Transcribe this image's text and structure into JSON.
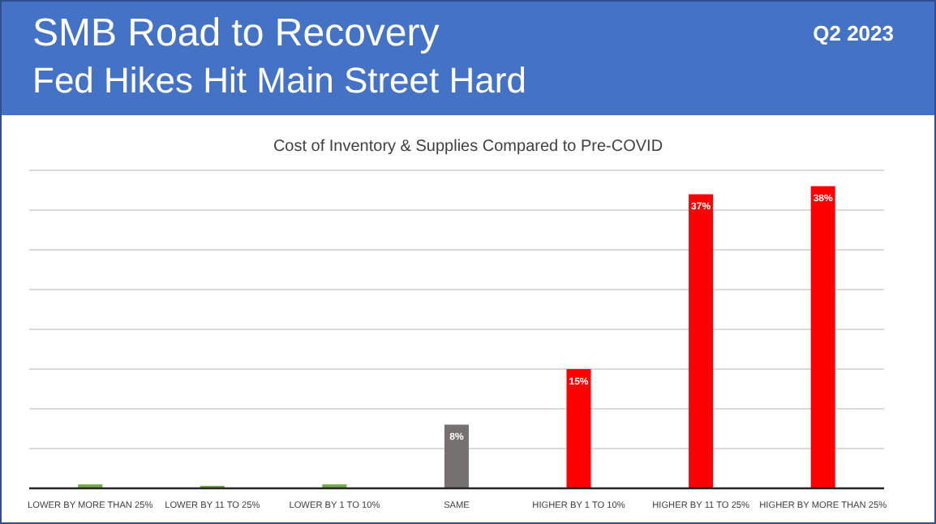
{
  "chart_data": {
    "type": "bar",
    "title": "SMB Road to Recovery",
    "subtitle": "Fed Hikes Hit Main Street Hard",
    "annotations": [
      "Q2 2023",
      "Cost of Inventory & Supplies Compared to Pre-COVID"
    ],
    "categories": [
      "LOWER BY MORE THAN 25%",
      "LOWER BY 11 TO 25%",
      "LOWER BY 1 TO 10%",
      "SAME",
      "HIGHER BY 1 TO 10%",
      "HIGHER BY 11 TO 25%",
      "HIGHER BY MORE THAN 25%"
    ],
    "values": [
      0.5,
      0.3,
      0.5,
      8,
      15,
      37,
      38
    ],
    "value_labels": [
      null,
      null,
      null,
      "8%",
      "15%",
      "37%",
      "38%"
    ],
    "colors": [
      "#70ad47",
      "#70ad47",
      "#70ad47",
      "#767171",
      "#ff0000",
      "#ff0000",
      "#ff0000"
    ],
    "ylim": [
      0,
      40
    ],
    "yticks": [
      {
        "value": 0,
        "label": null
      },
      {
        "value": 5,
        "label": null
      },
      {
        "value": 10,
        "label": null
      },
      {
        "value": 15,
        "label": null
      },
      {
        "value": 20,
        "label": null
      },
      {
        "value": 25,
        "label": null
      },
      {
        "value": 30,
        "label": null
      },
      {
        "value": 35,
        "label": null
      },
      {
        "value": 40,
        "label": null
      }
    ],
    "grid": "y"
  }
}
